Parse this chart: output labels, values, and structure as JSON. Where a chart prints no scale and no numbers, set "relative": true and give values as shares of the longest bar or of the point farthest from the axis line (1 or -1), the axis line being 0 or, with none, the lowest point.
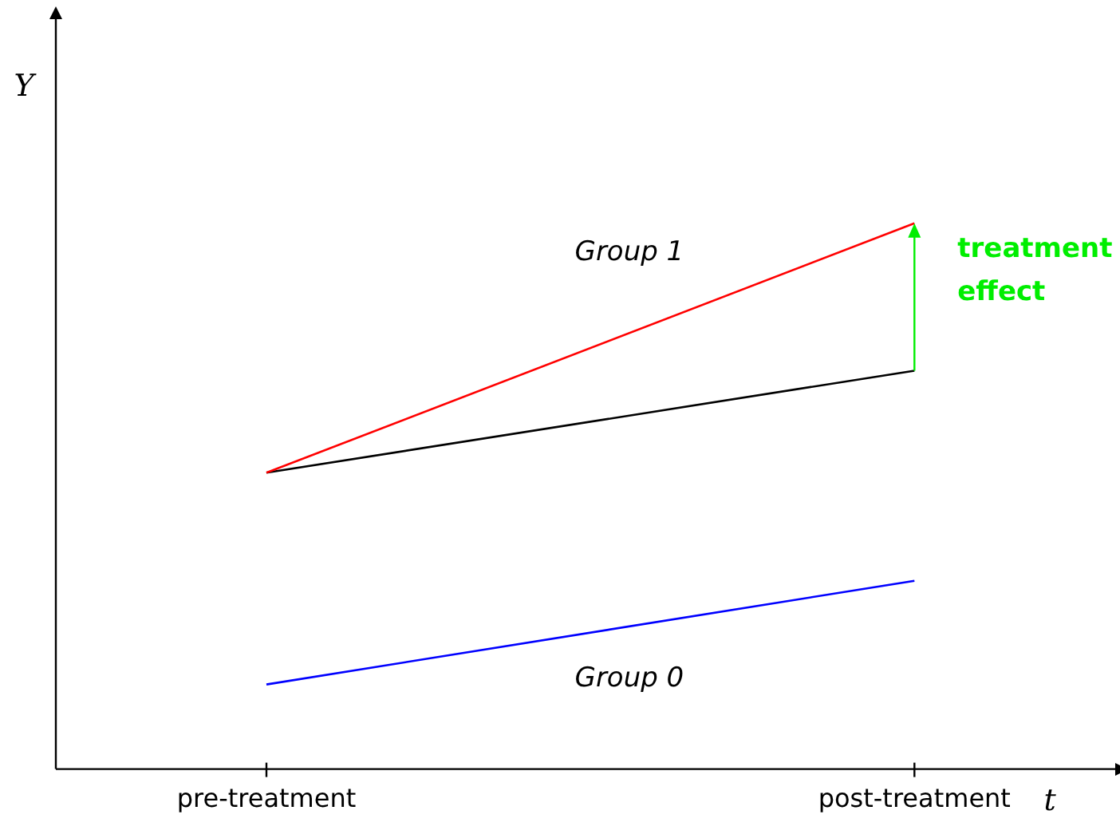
{
  "chart_data": {
    "type": "line",
    "relative": true,
    "xlabel": "t",
    "ylabel": "Y",
    "categories": [
      "pre-treatment",
      "post-treatment"
    ],
    "marker": "none",
    "legend": false,
    "grid": false,
    "series": [
      {
        "name": "Group 1",
        "color": "#ff0000",
        "values": [
          0.543,
          1
        ]
      },
      {
        "color": "#000000",
        "values": [
          0.543,
          0.73
        ]
      },
      {
        "name": "Group 0",
        "color": "#0000ff",
        "values": [
          0.155,
          0.345
        ]
      }
    ],
    "annotations": [
      "treatment effect"
    ]
  }
}
